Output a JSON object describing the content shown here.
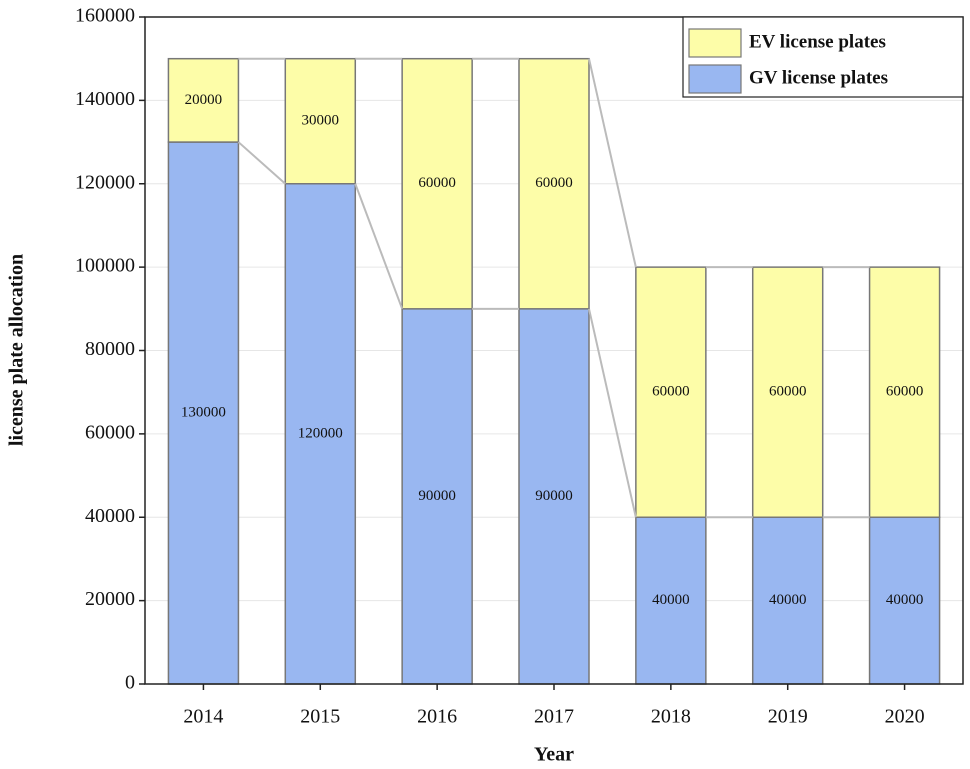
{
  "chart_data": {
    "type": "stacked_bar",
    "x_label": "Year",
    "y_label": "license plate allocation",
    "categories": [
      "2014",
      "2015",
      "2016",
      "2017",
      "2018",
      "2019",
      "2020"
    ],
    "series": [
      {
        "name": "EV license plates",
        "color": "#fdfda8",
        "values": [
          20000,
          30000,
          60000,
          60000,
          60000,
          60000,
          60000
        ]
      },
      {
        "name": "GV license plates",
        "color": "#99b7f1",
        "values": [
          130000,
          120000,
          90000,
          90000,
          40000,
          40000,
          40000
        ]
      }
    ],
    "ylim": [
      0,
      160000
    ],
    "yticks": [
      0,
      20000,
      40000,
      60000,
      80000,
      100000,
      120000,
      140000,
      160000
    ],
    "grid": true,
    "legend": "upper right"
  }
}
